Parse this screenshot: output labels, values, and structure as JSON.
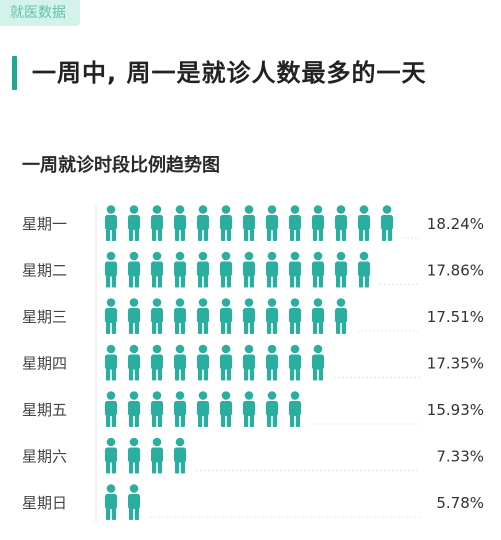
{
  "header": {
    "tag": "就医数据",
    "headline": "一周中, 周一是就诊人数最多的一天"
  },
  "chart_data": {
    "type": "bar",
    "title": "一周就诊时段比例趋势图",
    "categories": [
      "星期一",
      "星期二",
      "星期三",
      "星期四",
      "星期五",
      "星期六",
      "星期日"
    ],
    "values": [
      18.24,
      17.86,
      17.51,
      17.35,
      15.93,
      7.33,
      5.78
    ],
    "value_labels": [
      "18.24%",
      "17.86%",
      "17.51%",
      "17.35%",
      "15.93%",
      "7.33%",
      "5.78%"
    ],
    "icon_counts": [
      13,
      12,
      11,
      10,
      9,
      4,
      2
    ],
    "xlabel": "",
    "ylabel": "",
    "grid": false,
    "bar_style": "person-icons",
    "colors": {
      "icon": "#2aaea0",
      "accent": "#1ea88f",
      "tag_bg": "#d3f2ea",
      "tag_text": "#5fc3ad"
    }
  }
}
